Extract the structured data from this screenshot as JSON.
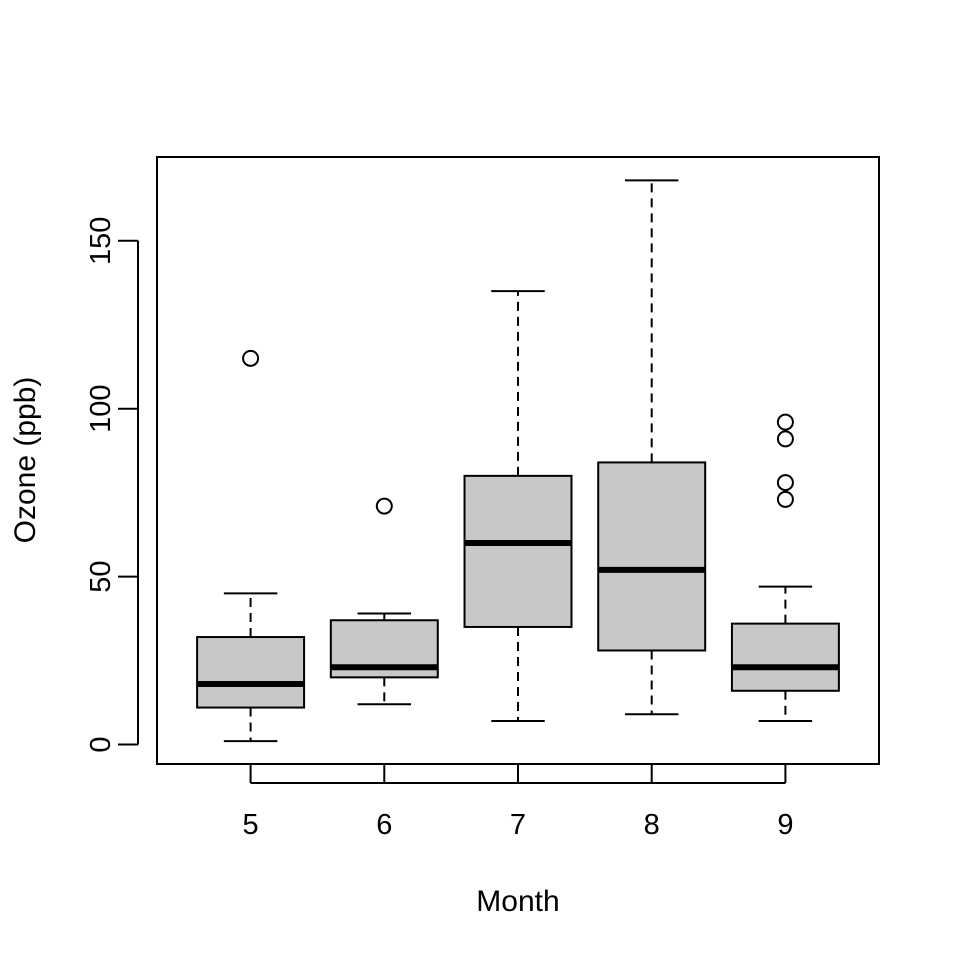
{
  "chart_data": {
    "type": "boxplot",
    "title": "",
    "xlabel": "Month",
    "ylabel": "Ozone (ppb)",
    "ylim": [
      -6,
      175
    ],
    "yticks": [
      0,
      50,
      100,
      150
    ],
    "grid": false,
    "legend": "none",
    "box_fill": "#c8c8c8",
    "categories": [
      "5",
      "6",
      "7",
      "8",
      "9"
    ],
    "boxes": [
      {
        "category": "5",
        "whisker_low": 1,
        "q1": 11,
        "median": 18,
        "q3": 32,
        "whisker_high": 45,
        "outliers": [
          115
        ]
      },
      {
        "category": "6",
        "whisker_low": 12,
        "q1": 20,
        "median": 23,
        "q3": 37,
        "whisker_high": 39,
        "outliers": [
          71
        ]
      },
      {
        "category": "7",
        "whisker_low": 7,
        "q1": 35,
        "median": 60,
        "q3": 80,
        "whisker_high": 135,
        "outliers": []
      },
      {
        "category": "8",
        "whisker_low": 9,
        "q1": 28,
        "median": 52,
        "q3": 84,
        "whisker_high": 168,
        "outliers": []
      },
      {
        "category": "9",
        "whisker_low": 7,
        "q1": 16,
        "median": 23,
        "q3": 36,
        "whisker_high": 47,
        "outliers": [
          73,
          78,
          91,
          96
        ]
      }
    ]
  }
}
